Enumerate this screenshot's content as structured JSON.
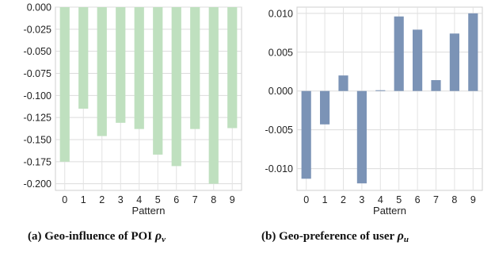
{
  "chart_data": [
    {
      "type": "bar",
      "categories": [
        "0",
        "1",
        "2",
        "3",
        "4",
        "5",
        "6",
        "7",
        "8",
        "9"
      ],
      "values": [
        -0.175,
        -0.115,
        -0.146,
        -0.131,
        -0.138,
        -0.167,
        -0.18,
        -0.138,
        -0.2,
        -0.137
      ],
      "xlabel": "Pattern",
      "ylabel": "",
      "ylim": [
        -0.2075,
        0.0
      ],
      "yticks": [
        "0.000",
        "-0.025",
        "-0.050",
        "-0.075",
        "-0.100",
        "-0.125",
        "-0.150",
        "-0.175",
        "-0.200"
      ],
      "ytick_values": [
        0.0,
        -0.025,
        -0.05,
        -0.075,
        -0.1,
        -0.125,
        -0.15,
        -0.175,
        -0.2
      ],
      "grid": true,
      "bar_color": "#bfe0bf",
      "caption": {
        "prefix": "(a) Geo-influence of POI ",
        "symbol": "ρ",
        "subscript": "v"
      }
    },
    {
      "type": "bar",
      "categories": [
        "0",
        "1",
        "2",
        "3",
        "4",
        "5",
        "6",
        "7",
        "8",
        "9"
      ],
      "values": [
        -0.0113,
        -0.0043,
        0.002,
        -0.0119,
        0.0001,
        0.0096,
        0.0079,
        0.0014,
        0.0074,
        0.01
      ],
      "xlabel": "Pattern",
      "ylabel": "",
      "ylim": [
        -0.0128,
        0.0108
      ],
      "yticks": [
        "0.010",
        "0.005",
        "0.000",
        "-0.005",
        "-0.010"
      ],
      "ytick_values": [
        0.01,
        0.005,
        0.0,
        -0.005,
        -0.01
      ],
      "grid": true,
      "bar_color": "#7b93b6",
      "caption": {
        "prefix": "(b) Geo-preference of user ",
        "symbol": "ρ",
        "subscript": "u"
      }
    }
  ]
}
